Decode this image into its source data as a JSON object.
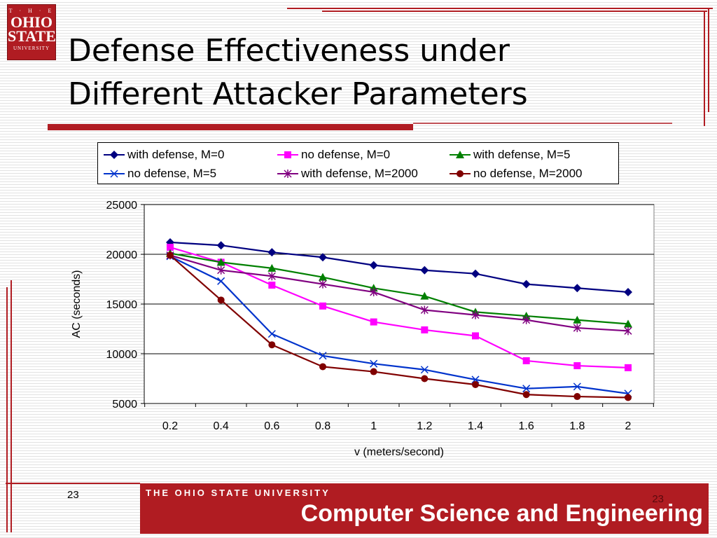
{
  "logo": {
    "line1": "T · H · E",
    "line2": "OHIO",
    "line3": "STATE",
    "line4": "UNIVERSITY"
  },
  "slide": {
    "title_line1": "Defense Effectiveness under",
    "title_line2": "Different Attacker Parameters",
    "page_number": "23",
    "footer_university": "THE OHIO STATE UNIVERSITY",
    "footer_department": "Computer Science and Engineering",
    "footer_page_number": "23"
  },
  "colors": {
    "brand_red": "#b01c22"
  },
  "chart_data": {
    "type": "line",
    "title": "",
    "xlabel": "v (meters/second)",
    "ylabel": "AC (seconds)",
    "x": [
      0.2,
      0.4,
      0.6,
      0.8,
      1,
      1.2,
      1.4,
      1.6,
      1.8,
      2
    ],
    "x_tick_labels": [
      "0.2",
      "0.4",
      "0.6",
      "0.8",
      "1",
      "1.2",
      "1.4",
      "1.6",
      "1.8",
      "2"
    ],
    "ylim": [
      5000,
      25000
    ],
    "y_ticks": [
      5000,
      10000,
      15000,
      20000,
      25000
    ],
    "y_tick_labels": [
      "5000",
      "10000",
      "15000",
      "20000",
      "25000"
    ],
    "grid": "horizontal",
    "legend_position": "top",
    "series": [
      {
        "name": "with defense, M=0",
        "color": "#000080",
        "marker": "diamond",
        "values": [
          21200,
          20900,
          20200,
          19700,
          18900,
          18400,
          18050,
          17000,
          16600,
          16200
        ]
      },
      {
        "name": "no defense, M=0",
        "color": "#ff00ff",
        "marker": "square",
        "values": [
          20700,
          19200,
          16900,
          14800,
          13200,
          12400,
          11800,
          9300,
          8800,
          8600
        ]
      },
      {
        "name": "with defense, M=5",
        "color": "#008000",
        "marker": "triangle",
        "values": [
          20100,
          19200,
          18600,
          17700,
          16600,
          15800,
          14200,
          13800,
          13400,
          13000
        ]
      },
      {
        "name": "no defense, M=5",
        "color": "#0033cc",
        "marker": "x",
        "values": [
          19800,
          17300,
          12000,
          9800,
          9000,
          8400,
          7400,
          6500,
          6700,
          6000
        ]
      },
      {
        "name": "with defense, M=2000",
        "color": "#800080",
        "marker": "star",
        "values": [
          19900,
          18400,
          17800,
          17000,
          16200,
          14400,
          13900,
          13400,
          12600,
          12300
        ]
      },
      {
        "name": "no defense, M=2000",
        "color": "#800000",
        "marker": "circle",
        "values": [
          19900,
          15400,
          10900,
          8700,
          8200,
          7500,
          6900,
          5900,
          5700,
          5600
        ]
      }
    ]
  }
}
